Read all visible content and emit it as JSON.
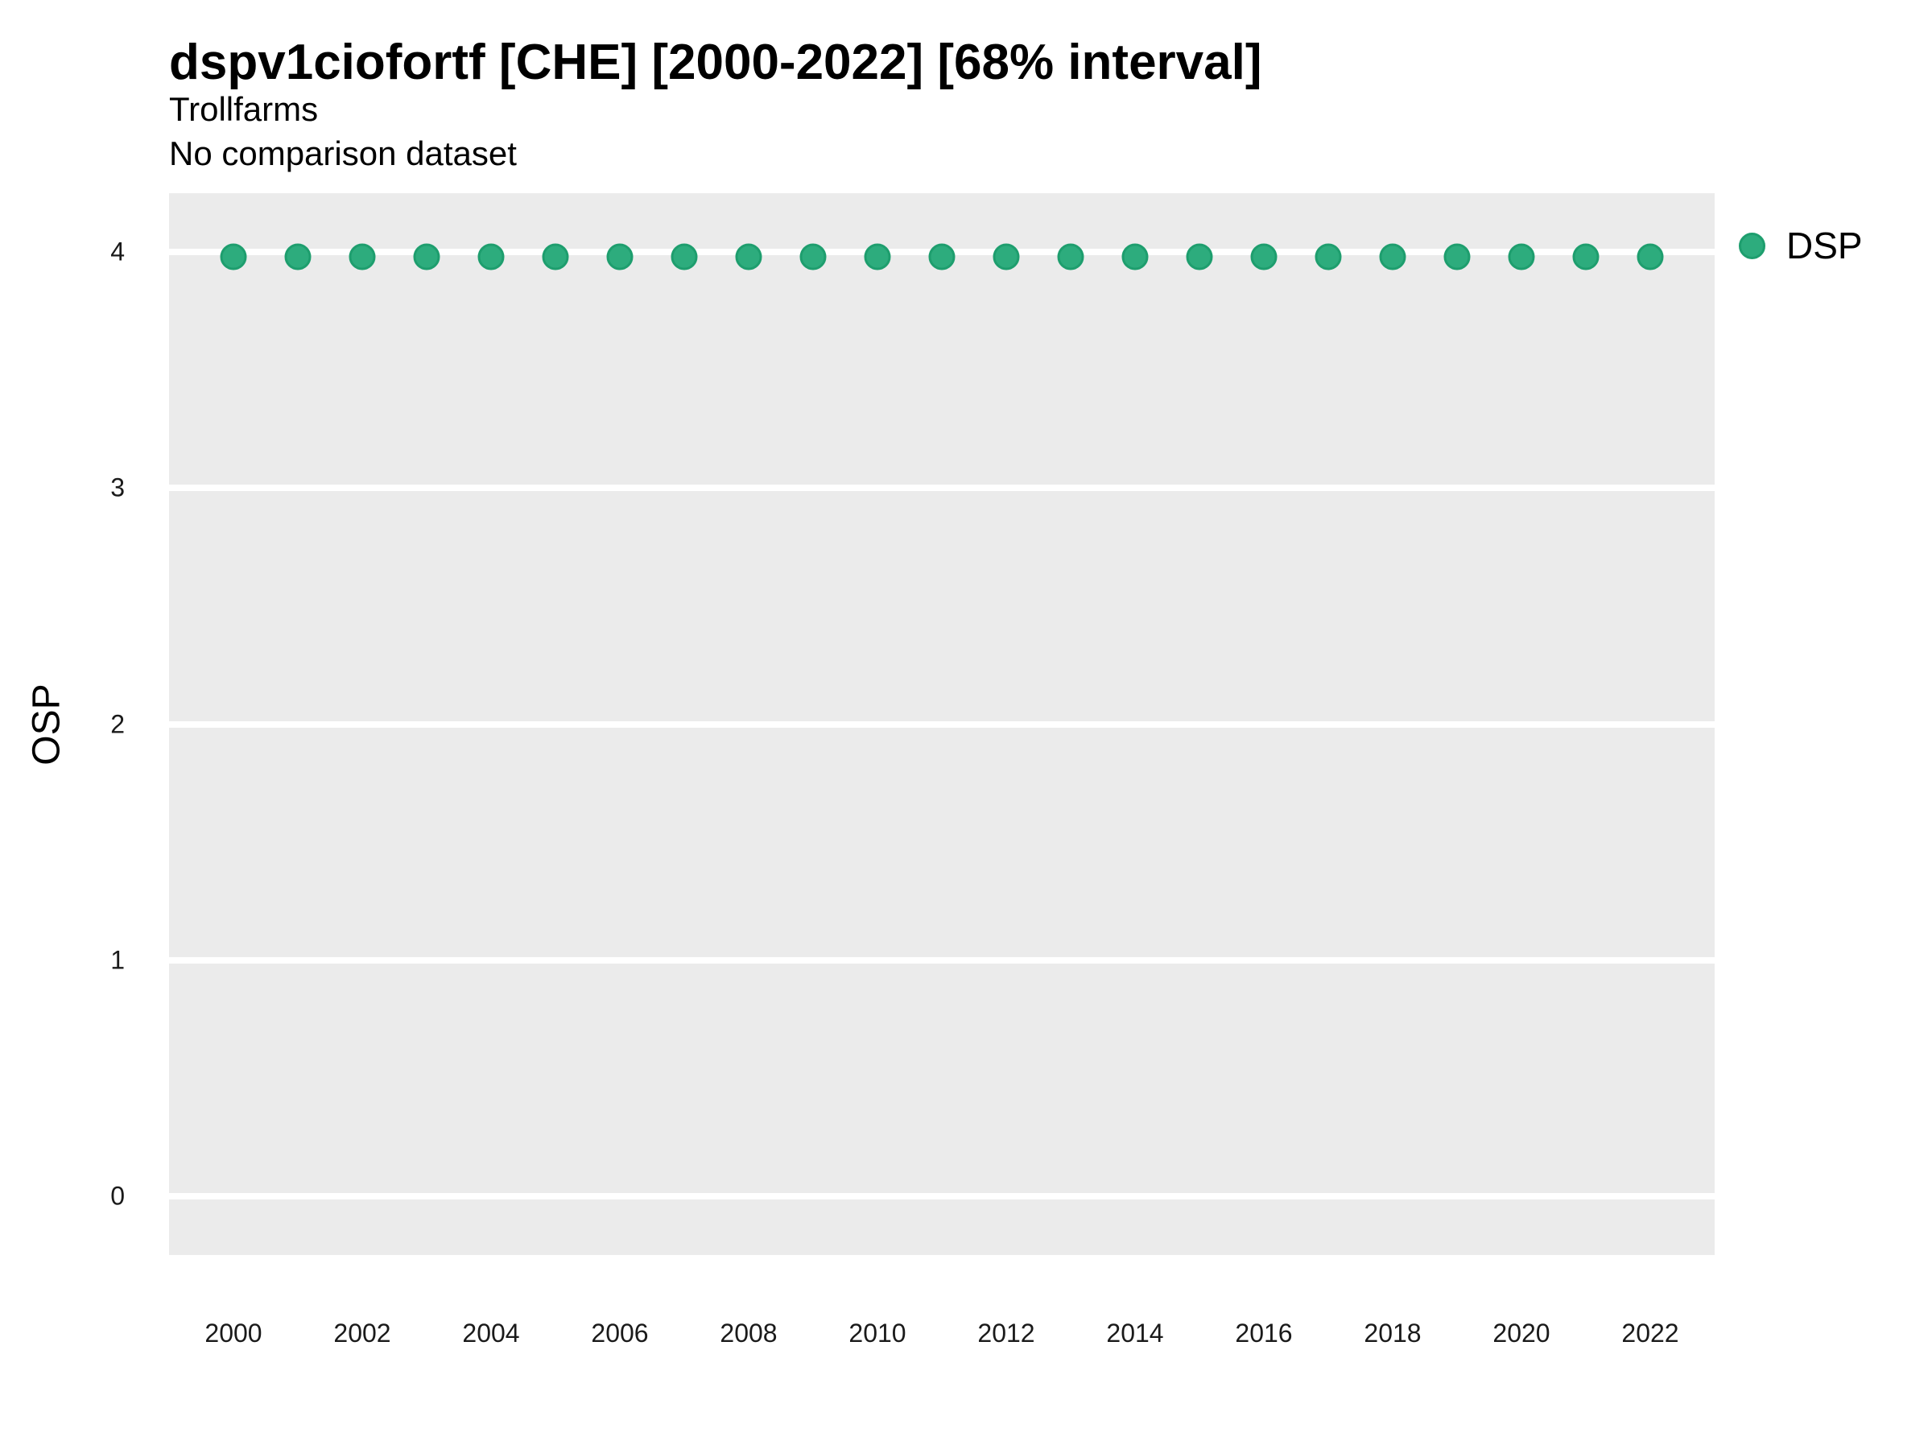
{
  "header": {
    "title": "dspv1ciofortf [CHE] [2000-2022] [68% interval]",
    "subtitle": "Trollfarms",
    "comparison_note": "No comparison dataset"
  },
  "y_axis_title": "OSP",
  "legend": {
    "items": [
      {
        "label": "DSP",
        "marker": "circle-icon",
        "color": "#2DAC7D",
        "border_color": "#1E9E6E"
      }
    ]
  },
  "chart_data": {
    "type": "scatter",
    "title": "dspv1ciofortf [CHE] [2000-2022] [68% interval]",
    "subtitle": "Trollfarms",
    "note": "No comparison dataset",
    "xlabel": "",
    "ylabel": "OSP",
    "x": [
      2000,
      2001,
      2002,
      2003,
      2004,
      2005,
      2006,
      2007,
      2008,
      2009,
      2010,
      2011,
      2012,
      2013,
      2014,
      2015,
      2016,
      2017,
      2018,
      2019,
      2020,
      2021,
      2022
    ],
    "series": [
      {
        "name": "DSP",
        "values": [
          3.98,
          3.98,
          3.98,
          3.98,
          3.98,
          3.98,
          3.98,
          3.98,
          3.98,
          3.98,
          3.98,
          3.98,
          3.98,
          3.98,
          3.98,
          3.98,
          3.98,
          3.98,
          3.98,
          3.98,
          3.98,
          3.98,
          3.98
        ]
      }
    ],
    "xlim": [
      1999,
      2023
    ],
    "ylim": [
      -0.25,
      4.25
    ],
    "xticks": [
      2000,
      2002,
      2004,
      2006,
      2008,
      2010,
      2012,
      2014,
      2016,
      2018,
      2020,
      2022
    ],
    "yticks": [
      0,
      1,
      2,
      3,
      4
    ],
    "grid": "horizontal-major-only",
    "legend_position": "right-top",
    "panel_background": "#EBEBEB",
    "gridline_color": "#FFFFFF",
    "point_color": "#2DAC7D",
    "point_border_color": "#1E9E6E"
  }
}
